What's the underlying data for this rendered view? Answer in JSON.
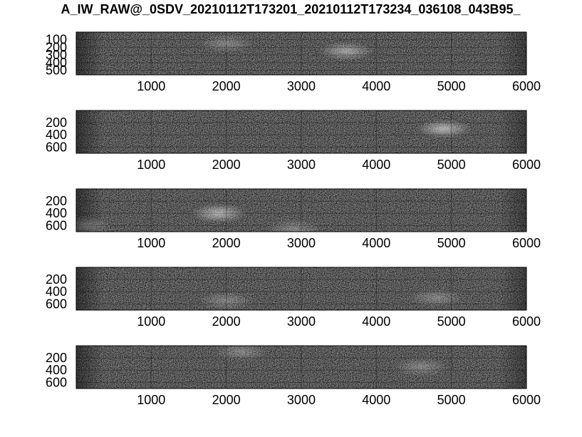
{
  "chart_data": {
    "type": "heatmap",
    "title": "A_IW_RAW@_0SDV_20210112T173201_20210112T173234_036108_043B95_",
    "colormap": "gray",
    "grid": true,
    "panels": [
      {
        "xlim": [
          1,
          6000
        ],
        "ylim": [
          1,
          560
        ],
        "xticks": [
          1000,
          2000,
          3000,
          4000,
          5000,
          6000
        ],
        "yticks": [
          100,
          200,
          300,
          400,
          500
        ],
        "bright_regions": [
          {
            "x": 3600,
            "y": 250,
            "strength": 0.5
          },
          {
            "x": 2000,
            "y": 150,
            "strength": 0.3
          }
        ]
      },
      {
        "xlim": [
          1,
          6000
        ],
        "ylim": [
          1,
          700
        ],
        "xticks": [
          1000,
          2000,
          3000,
          4000,
          5000,
          6000
        ],
        "yticks": [
          200,
          400,
          600
        ],
        "bright_regions": [
          {
            "x": 4900,
            "y": 300,
            "strength": 0.6
          }
        ]
      },
      {
        "xlim": [
          1,
          6000
        ],
        "ylim": [
          1,
          700
        ],
        "xticks": [
          1000,
          2000,
          3000,
          4000,
          5000,
          6000
        ],
        "yticks": [
          200,
          400,
          600
        ],
        "bright_regions": [
          {
            "x": 1900,
            "y": 400,
            "strength": 0.6
          },
          {
            "x": 100,
            "y": 600,
            "strength": 0.4
          },
          {
            "x": 2900,
            "y": 650,
            "strength": 0.3
          }
        ]
      },
      {
        "xlim": [
          1,
          6000
        ],
        "ylim": [
          1,
          700
        ],
        "xticks": [
          1000,
          2000,
          3000,
          4000,
          5000,
          6000
        ],
        "yticks": [
          200,
          400,
          600
        ],
        "bright_regions": [
          {
            "x": 2000,
            "y": 550,
            "strength": 0.3
          },
          {
            "x": 4800,
            "y": 500,
            "strength": 0.3
          }
        ]
      },
      {
        "xlim": [
          1,
          6000
        ],
        "ylim": [
          1,
          700
        ],
        "xticks": [
          1000,
          2000,
          3000,
          4000,
          5000,
          6000
        ],
        "yticks": [
          200,
          400,
          600
        ],
        "bright_regions": [
          {
            "x": 2200,
            "y": 100,
            "strength": 0.3
          },
          {
            "x": 4600,
            "y": 350,
            "strength": 0.3
          }
        ]
      }
    ]
  }
}
